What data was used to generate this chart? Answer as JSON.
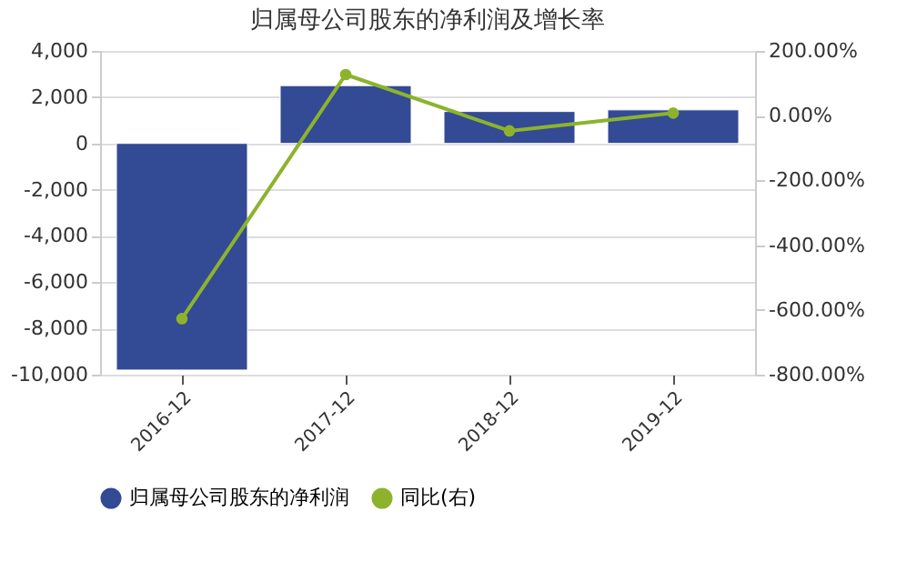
{
  "chart_data": {
    "type": "bar",
    "title": "归属母公司股东的净利润及增长率",
    "categories": [
      "2016-12",
      "2017-12",
      "2018-12",
      "2019-12"
    ],
    "series": [
      {
        "name": "归属母公司股东的净利润",
        "color": "#334a94",
        "values": [
          -9800,
          2500,
          1380,
          1450
        ]
      },
      {
        "name": "同比(右)",
        "type": "line",
        "axis": "y2",
        "color": "#8db32d",
        "values": [
          -627,
          127,
          -47,
          8
        ]
      }
    ],
    "ylim": [
      -10000,
      4000
    ],
    "yticks": [
      {
        "value": -10000,
        "label": "-10,000"
      },
      {
        "value": -8000,
        "label": "-8,000"
      },
      {
        "value": -6000,
        "label": "-6,000"
      },
      {
        "value": -4000,
        "label": "-4,000"
      },
      {
        "value": -2000,
        "label": "-2,000"
      },
      0,
      {
        "value": 2000,
        "label": "2,000"
      },
      {
        "value": 4000,
        "label": "4,000"
      }
    ],
    "y2lim": [
      -800,
      200
    ],
    "y2ticks": [
      {
        "value": -800,
        "label": "-800.00%"
      },
      {
        "value": -600,
        "label": "-600.00%"
      },
      {
        "value": -400,
        "label": "-400.00%"
      },
      {
        "value": -200,
        "label": "-200.00%"
      },
      {
        "value": 0,
        "label": "0.00%"
      },
      {
        "value": 200,
        "label": "200.00%"
      }
    ],
    "grid": "y",
    "legend": "bottom",
    "marker": "circle"
  }
}
